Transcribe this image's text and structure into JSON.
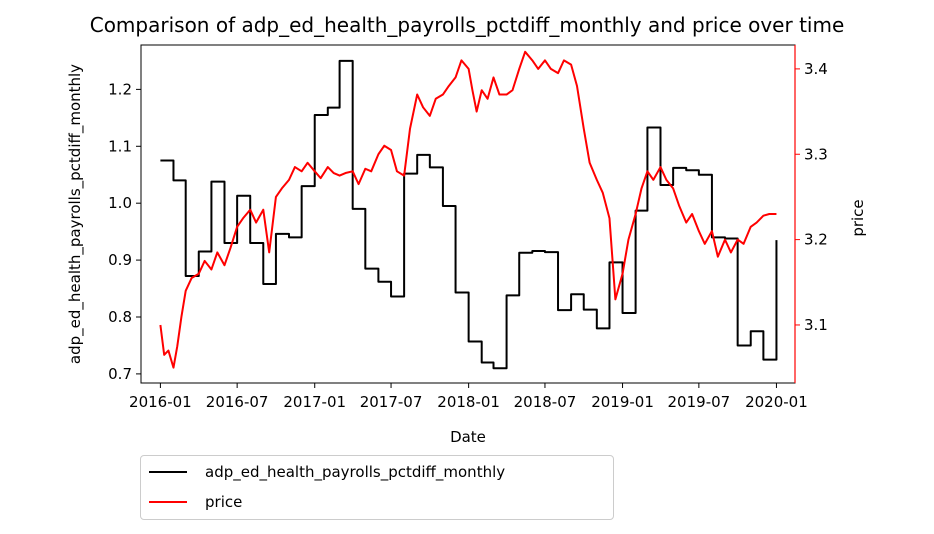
{
  "chart_data": {
    "type": "line",
    "title": "Comparison of adp_ed_health_payrolls_pctdiff_monthly and price over time",
    "xlabel": "Date",
    "ylabel_left": "adp_ed_health_payrolls_pctdiff_monthly",
    "ylabel_right": "price",
    "x_ticks": [
      "2016-01",
      "2016-07",
      "2017-01",
      "2017-07",
      "2018-01",
      "2018-07",
      "2019-01",
      "2019-07",
      "2020-01"
    ],
    "y_left_ticks": [
      "0.7",
      "0.8",
      "0.9",
      "1.0",
      "1.1",
      "1.2"
    ],
    "y_right_ticks": [
      "3.1",
      "3.2",
      "3.3",
      "3.4"
    ],
    "xlim": [
      "2015-11-16",
      "2020-02-14"
    ],
    "ylim_left": [
      0.684,
      1.278
    ],
    "ylim_right": [
      3.032,
      3.428
    ],
    "legend_position": "below-left",
    "grid": false,
    "colors": {
      "left_axis": "#000000",
      "right_axis": "#ff0000"
    },
    "series": [
      {
        "name": "adp_ed_health_payrolls_pctdiff_monthly",
        "axis": "left",
        "color": "#000000",
        "step": true,
        "x": [
          "2016-01-01",
          "2016-02-01",
          "2016-03-01",
          "2016-04-01",
          "2016-05-01",
          "2016-06-01",
          "2016-07-01",
          "2016-08-01",
          "2016-09-01",
          "2016-10-01",
          "2016-11-01",
          "2016-12-01",
          "2017-01-01",
          "2017-02-01",
          "2017-03-01",
          "2017-04-01",
          "2017-05-01",
          "2017-06-01",
          "2017-07-01",
          "2017-08-01",
          "2017-09-01",
          "2017-10-01",
          "2017-11-01",
          "2017-12-01",
          "2018-01-01",
          "2018-02-01",
          "2018-03-01",
          "2018-04-01",
          "2018-05-01",
          "2018-06-01",
          "2018-07-01",
          "2018-08-01",
          "2018-09-01",
          "2018-10-01",
          "2018-11-01",
          "2018-12-01",
          "2019-01-01",
          "2019-02-01",
          "2019-03-01",
          "2019-04-01",
          "2019-05-01",
          "2019-06-01",
          "2019-07-01",
          "2019-08-01",
          "2019-09-01",
          "2019-10-01",
          "2019-11-01",
          "2019-12-01",
          "2020-01-01"
        ],
        "values": [
          1.075,
          1.04,
          0.872,
          0.915,
          1.038,
          0.93,
          1.013,
          0.93,
          0.858,
          0.946,
          0.94,
          1.03,
          1.155,
          1.168,
          1.25,
          0.99,
          0.885,
          0.862,
          0.836,
          1.052,
          1.085,
          1.063,
          0.995,
          0.843,
          0.757,
          0.72,
          0.71,
          0.838,
          0.913,
          0.916,
          0.914,
          0.812,
          0.84,
          0.813,
          0.78,
          0.896,
          0.807,
          0.987,
          1.133,
          1.032,
          1.062,
          1.058,
          1.05,
          0.94,
          0.938,
          0.75,
          0.775,
          0.725,
          0.935
        ]
      },
      {
        "name": "price",
        "axis": "right",
        "color": "#ff0000",
        "step": false,
        "x": [
          "2016-01-01",
          "2016-01-10",
          "2016-01-20",
          "2016-02-01",
          "2016-02-10",
          "2016-02-20",
          "2016-03-01",
          "2016-03-15",
          "2016-04-01",
          "2016-04-15",
          "2016-05-01",
          "2016-05-15",
          "2016-06-01",
          "2016-06-15",
          "2016-07-01",
          "2016-07-15",
          "2016-08-01",
          "2016-08-15",
          "2016-09-01",
          "2016-09-15",
          "2016-10-01",
          "2016-10-15",
          "2016-11-01",
          "2016-11-15",
          "2016-12-01",
          "2016-12-15",
          "2017-01-01",
          "2017-01-15",
          "2017-02-01",
          "2017-02-15",
          "2017-03-01",
          "2017-03-15",
          "2017-04-01",
          "2017-04-15",
          "2017-05-01",
          "2017-05-15",
          "2017-06-01",
          "2017-06-15",
          "2017-07-01",
          "2017-07-15",
          "2017-08-01",
          "2017-08-15",
          "2017-09-01",
          "2017-09-15",
          "2017-10-01",
          "2017-10-15",
          "2017-11-01",
          "2017-11-15",
          "2017-12-01",
          "2017-12-15",
          "2018-01-01",
          "2018-01-10",
          "2018-01-20",
          "2018-02-01",
          "2018-02-15",
          "2018-03-01",
          "2018-03-15",
          "2018-04-01",
          "2018-04-15",
          "2018-05-01",
          "2018-05-15",
          "2018-06-01",
          "2018-06-15",
          "2018-07-01",
          "2018-07-15",
          "2018-08-01",
          "2018-08-15",
          "2018-09-01",
          "2018-09-15",
          "2018-10-01",
          "2018-10-15",
          "2018-11-01",
          "2018-11-15",
          "2018-12-01",
          "2018-12-15",
          "2019-01-01",
          "2019-01-15",
          "2019-02-01",
          "2019-02-15",
          "2019-03-01",
          "2019-03-15",
          "2019-04-01",
          "2019-04-15",
          "2019-05-01",
          "2019-05-15",
          "2019-06-01",
          "2019-06-15",
          "2019-07-01",
          "2019-07-15",
          "2019-08-01",
          "2019-08-15",
          "2019-09-01",
          "2019-09-15",
          "2019-10-01",
          "2019-10-15",
          "2019-11-01",
          "2019-11-15",
          "2019-12-01",
          "2019-12-15",
          "2020-01-01"
        ],
        "values": [
          3.1,
          3.065,
          3.07,
          3.05,
          3.075,
          3.11,
          3.14,
          3.155,
          3.16,
          3.175,
          3.165,
          3.185,
          3.17,
          3.19,
          3.215,
          3.225,
          3.235,
          3.22,
          3.235,
          3.185,
          3.25,
          3.26,
          3.27,
          3.285,
          3.28,
          3.29,
          3.28,
          3.272,
          3.285,
          3.278,
          3.275,
          3.278,
          3.28,
          3.265,
          3.283,
          3.28,
          3.3,
          3.31,
          3.305,
          3.28,
          3.275,
          3.33,
          3.37,
          3.355,
          3.345,
          3.365,
          3.37,
          3.38,
          3.39,
          3.41,
          3.4,
          3.375,
          3.35,
          3.375,
          3.365,
          3.39,
          3.37,
          3.37,
          3.375,
          3.4,
          3.42,
          3.41,
          3.4,
          3.41,
          3.4,
          3.395,
          3.41,
          3.405,
          3.38,
          3.33,
          3.29,
          3.27,
          3.255,
          3.225,
          3.13,
          3.16,
          3.2,
          3.23,
          3.26,
          3.28,
          3.27,
          3.285,
          3.27,
          3.26,
          3.24,
          3.22,
          3.23,
          3.21,
          3.195,
          3.21,
          3.18,
          3.2,
          3.185,
          3.2,
          3.195,
          3.215,
          3.22,
          3.228,
          3.23,
          3.23
        ]
      }
    ]
  }
}
